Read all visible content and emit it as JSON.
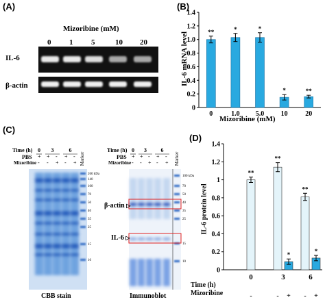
{
  "panel_labels": {
    "a": "(A)",
    "b": "(B)",
    "c": "(C)",
    "d": "(D)"
  },
  "gel_a": {
    "title": "Mizoribine  (mM)",
    "concentrations": [
      "0",
      "1",
      "5",
      "10",
      "20"
    ],
    "rows": [
      "IL-6",
      "β-actin"
    ]
  },
  "panel_c": {
    "time_label": "Time (h)",
    "pbs_label": "PBS",
    "mizoribine_label": "Mizoribine",
    "times": [
      "0",
      "3",
      "6"
    ],
    "pbs_signs": [
      "+",
      "+",
      "-",
      "+",
      "-"
    ],
    "miz_signs": [
      "-",
      "-",
      "+",
      "-",
      "+"
    ],
    "marker_label": "Marker",
    "mw_ladder": [
      "260 kDa",
      "140",
      "100",
      "70",
      "50",
      "40",
      "35",
      "25",
      "15",
      "10"
    ],
    "mw_ladder_right": [
      "100 kDa",
      "70",
      "50",
      "40",
      "35",
      "25",
      "15",
      "10"
    ],
    "cbb_caption": "CBB stain",
    "immunoblot_caption": "Immunoblot",
    "beta_actin_label": "β-actin",
    "il6_label": "IL-6"
  },
  "chart_data": [
    {
      "type": "bar",
      "panel": "B",
      "categories": [
        "0",
        "1.0",
        "5.0",
        "10",
        "20"
      ],
      "values": [
        1.0,
        1.03,
        1.03,
        0.15,
        0.16
      ],
      "errors": [
        0.05,
        0.06,
        0.07,
        0.04,
        0.02
      ],
      "significance": [
        "**",
        "*",
        "*",
        "*",
        "**"
      ],
      "xlabel": "Mizoribine  (mM)",
      "ylabel": "IL-6 mRNA level",
      "ylim": [
        0,
        1.4
      ],
      "yticks": [
        "0",
        "0.2",
        "0.4",
        "0.6",
        "0.8",
        "1.0",
        "1.2",
        "1.4"
      ],
      "bar_color": "#29a9e0"
    },
    {
      "type": "bar",
      "panel": "D",
      "groups": [
        "0",
        "3",
        "6"
      ],
      "series": [
        {
          "values": [
            1.0,
            1.14,
            0.81
          ],
          "errors": [
            0.03,
            0.05,
            0.04
          ],
          "significance": [
            "**",
            "**",
            "**"
          ]
        },
        {
          "values": [
            null,
            0.09,
            0.13
          ],
          "errors": [
            null,
            0.03,
            0.03
          ],
          "significance": [
            "",
            "*",
            "*"
          ]
        }
      ],
      "time_label": "Time (h)",
      "mizoribine_label": "Mizoribine",
      "miz_signs": [
        "-",
        "-",
        "+",
        "-",
        "+"
      ],
      "ylabel": "IL-6 protein level",
      "ylim": [
        0,
        1.4
      ],
      "yticks": [
        "0",
        "0.2",
        "0.4",
        "0.6",
        "0.8",
        "1",
        "1.2",
        "1.4"
      ],
      "colors": [
        "#e4f4fa",
        "#29a9e0"
      ]
    }
  ]
}
